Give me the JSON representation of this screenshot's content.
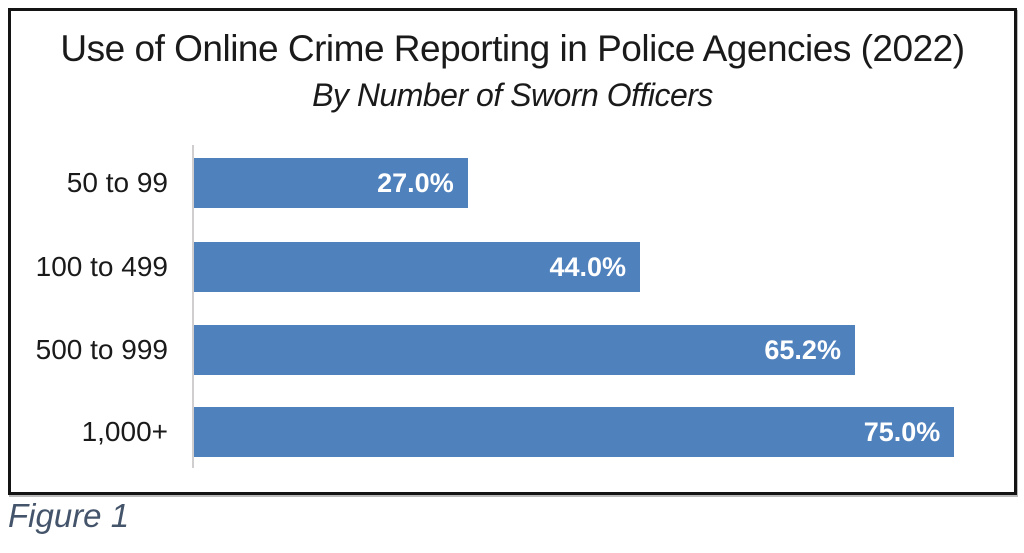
{
  "figure": {
    "caption": "Figure 1",
    "caption_color": "#44546A"
  },
  "chart_data": {
    "type": "bar",
    "orientation": "horizontal",
    "title": "Use of Online Crime Reporting in Police Agencies (2022)",
    "subtitle": "By Number of Sworn Officers",
    "categories": [
      "50 to 99",
      "100 to 499",
      "500 to 999",
      "1,000+"
    ],
    "values": [
      27.0,
      44.0,
      65.2,
      75.0
    ],
    "value_labels": [
      "27.0%",
      "44.0%",
      "65.2%",
      "75.0%"
    ],
    "xlim": [
      0,
      80
    ],
    "bar_color": "#4F81BD",
    "value_label_color": "#FFFFFF",
    "category_label_color": "#1a1a1a",
    "axis_line_color": "#D0CECE",
    "grid": false,
    "legend": false,
    "value_labels_position": "inside-end"
  }
}
